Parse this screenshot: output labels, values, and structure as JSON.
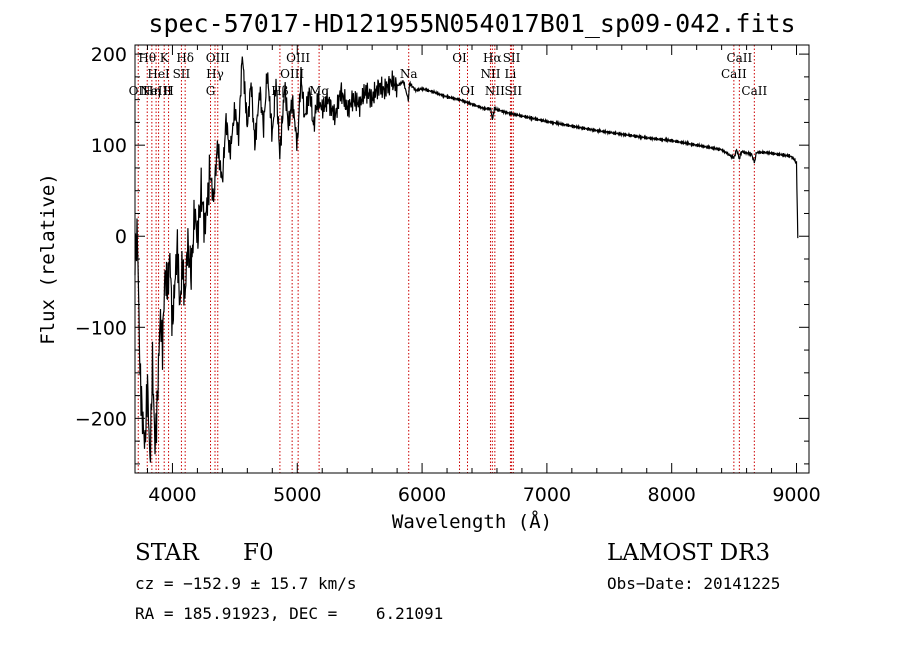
{
  "chart_data": {
    "type": "line",
    "title": "spec-57017-HD121955N054017B01_sp09-042.fits",
    "xlabel": "Wavelength (Å)",
    "ylabel": "Flux (relative)",
    "xlim": [
      3700,
      9100
    ],
    "ylim": [
      -260,
      210
    ],
    "xticks": [
      4000,
      5000,
      6000,
      7000,
      8000,
      9000
    ],
    "yticks": [
      -200,
      -100,
      0,
      100,
      200
    ],
    "ytick_labels": [
      "−200",
      "−100",
      "0",
      "100",
      "200"
    ],
    "series": [
      {
        "name": "flux",
        "x": [
          3700,
          3720,
          3740,
          3760,
          3780,
          3800,
          3820,
          3840,
          3860,
          3880,
          3900,
          3920,
          3940,
          3960,
          3980,
          4000,
          4020,
          4040,
          4060,
          4080,
          4100,
          4120,
          4150,
          4180,
          4200,
          4230,
          4260,
          4300,
          4330,
          4360,
          4400,
          4430,
          4460,
          4500,
          4530,
          4560,
          4600,
          4630,
          4660,
          4700,
          4730,
          4760,
          4800,
          4830,
          4860,
          4900,
          4930,
          4960,
          5000,
          5030,
          5060,
          5100,
          5130,
          5160,
          5200,
          5250,
          5300,
          5350,
          5400,
          5450,
          5500,
          5550,
          5600,
          5650,
          5700,
          5750,
          5800,
          5850,
          5890,
          5900,
          5950,
          6000,
          6100,
          6200,
          6300,
          6400,
          6500,
          6550,
          6563,
          6580,
          6650,
          6700,
          6800,
          6900,
          7000,
          7200,
          7400,
          7600,
          7800,
          8000,
          8200,
          8400,
          8498,
          8520,
          8542,
          8560,
          8640,
          8662,
          8680,
          8750,
          8850,
          8950,
          8980,
          9000,
          9010
        ],
        "y": [
          -20,
          0,
          -150,
          -200,
          -230,
          -160,
          -250,
          -140,
          -230,
          -180,
          -90,
          -120,
          -40,
          -60,
          -20,
          -100,
          -50,
          -10,
          -80,
          -30,
          -70,
          -10,
          -40,
          30,
          -5,
          50,
          10,
          70,
          40,
          100,
          60,
          130,
          90,
          140,
          110,
          200,
          120,
          170,
          100,
          160,
          120,
          180,
          110,
          170,
          90,
          165,
          120,
          150,
          100,
          175,
          130,
          160,
          120,
          150,
          140,
          150,
          130,
          160,
          140,
          150,
          145,
          160,
          150,
          165,
          160,
          170,
          165,
          170,
          150,
          168,
          160,
          162,
          158,
          153,
          150,
          145,
          140,
          140,
          128,
          140,
          137,
          135,
          132,
          129,
          126,
          121,
          116,
          112,
          108,
          105,
          100,
          95,
          86,
          95,
          85,
          93,
          90,
          81,
          92,
          92,
          90,
          88,
          85,
          80,
          -2
        ],
        "values": [
          -20,
          0,
          -150,
          -200,
          -230,
          -160,
          -250,
          -140,
          -230,
          -180,
          -90,
          -120,
          -40,
          -60,
          -20,
          -100,
          -50,
          -10,
          -80,
          -30,
          -70,
          -10,
          -40,
          30,
          -5,
          50,
          10,
          70,
          40,
          100,
          60,
          130,
          90,
          140,
          110,
          200,
          120,
          170,
          100,
          160,
          120,
          180,
          110,
          170,
          90,
          165,
          120,
          150,
          100,
          175,
          130,
          160,
          120,
          150,
          140,
          150,
          130,
          160,
          140,
          150,
          145,
          160,
          150,
          165,
          160,
          170,
          165,
          170,
          150,
          168,
          160,
          162,
          158,
          153,
          150,
          145,
          140,
          140,
          128,
          140,
          137,
          135,
          132,
          129,
          126,
          121,
          116,
          112,
          108,
          105,
          100,
          95,
          86,
          95,
          85,
          93,
          90,
          81,
          92,
          92,
          90,
          88,
          85,
          80,
          -2
        ]
      }
    ],
    "spectral_lines": [
      {
        "wl": 3726,
        "label": "OII",
        "row": 3
      },
      {
        "wl": 3798,
        "label": "Hθ",
        "row": 1
      },
      {
        "wl": 3835,
        "label": "Hη",
        "row": 3
      },
      {
        "wl": 3869,
        "label": "NeIII",
        "row": 3
      },
      {
        "wl": 3889,
        "label": "HeI",
        "row": 2
      },
      {
        "wl": 3934,
        "label": "K",
        "row": 1
      },
      {
        "wl": 3969,
        "label": "H",
        "row": 3
      },
      {
        "wl": 4072,
        "label": "SII",
        "row": 2
      },
      {
        "wl": 4102,
        "label": "Hδ",
        "row": 1
      },
      {
        "wl": 4305,
        "label": "G",
        "row": 3
      },
      {
        "wl": 4341,
        "label": "Hγ",
        "row": 2
      },
      {
        "wl": 4363,
        "label": "OIII",
        "row": 1
      },
      {
        "wl": 4861,
        "label": "Hβ",
        "row": 3
      },
      {
        "wl": 4959,
        "label": "OIII",
        "row": 2
      },
      {
        "wl": 5007,
        "label": "OIII",
        "row": 1
      },
      {
        "wl": 5175,
        "label": "Mg",
        "row": 3
      },
      {
        "wl": 5893,
        "label": "Na",
        "row": 2
      },
      {
        "wl": 6300,
        "label": "OI",
        "row": 1
      },
      {
        "wl": 6364,
        "label": "OI",
        "row": 3
      },
      {
        "wl": 6548,
        "label": "NII",
        "row": 2
      },
      {
        "wl": 6563,
        "label": "Hα",
        "row": 1
      },
      {
        "wl": 6583,
        "label": "NII",
        "row": 3
      },
      {
        "wl": 6717,
        "label": "SII",
        "row": 1
      },
      {
        "wl": 6731,
        "label": "SII",
        "row": 3
      },
      {
        "wl": 6708,
        "label": "Li",
        "row": 2
      },
      {
        "wl": 8498,
        "label": "CaII",
        "row": 2
      },
      {
        "wl": 8542,
        "label": "CaII",
        "row": 1
      },
      {
        "wl": 8662,
        "label": "CaII",
        "row": 3
      }
    ]
  },
  "info": {
    "object_class": "STAR",
    "subclass": "F0",
    "survey": "LAMOST DR3",
    "cz": "cz = −152.9 ± 15.7 km/s",
    "obs_date": "Obs−Date: 20141225",
    "coords": "RA = 185.91923, DEC =    6.21091"
  },
  "colors": {
    "spectrum": "#000000",
    "line_marker": "#cc0000",
    "axes": "#000000"
  }
}
